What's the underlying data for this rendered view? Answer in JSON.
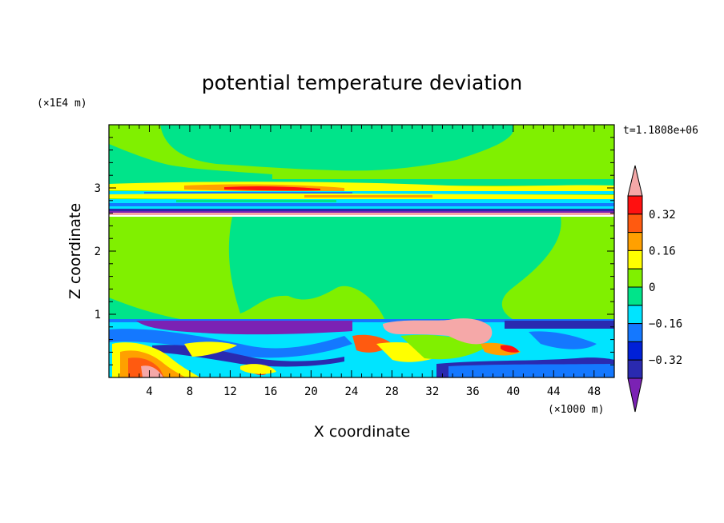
{
  "chart_data": {
    "type": "heatmap",
    "title": "potential temperature deviation",
    "xlabel": "X coordinate",
    "ylabel": "Z coordinate",
    "x_unit": "(×1000 m)",
    "y_unit": "(×1E4 m)",
    "time_label": "t=1.1808e+06",
    "xlim": [
      0,
      50
    ],
    "ylim": [
      0,
      4
    ],
    "x_ticks": [
      "4",
      "8",
      "12",
      "16",
      "20",
      "24",
      "28",
      "32",
      "36",
      "40",
      "44",
      "48"
    ],
    "y_ticks": [
      "1",
      "2",
      "3"
    ],
    "colorbar": {
      "levels": [
        -0.48,
        -0.4,
        -0.32,
        -0.24,
        -0.16,
        -0.08,
        0,
        0.08,
        0.16,
        0.24,
        0.32,
        0.4
      ],
      "tick_labels": [
        "0.32",
        "0.16",
        "0",
        "−0.16",
        "−0.32"
      ],
      "colors": [
        "#7b22b4",
        "#2a2ab0",
        "#0020d8",
        "#1478ff",
        "#00e4ff",
        "#00e48a",
        "#80f000",
        "#ffff00",
        "#ffa000",
        "#ff5a10",
        "#ff1010",
        "#f5a8a8"
      ]
    }
  }
}
